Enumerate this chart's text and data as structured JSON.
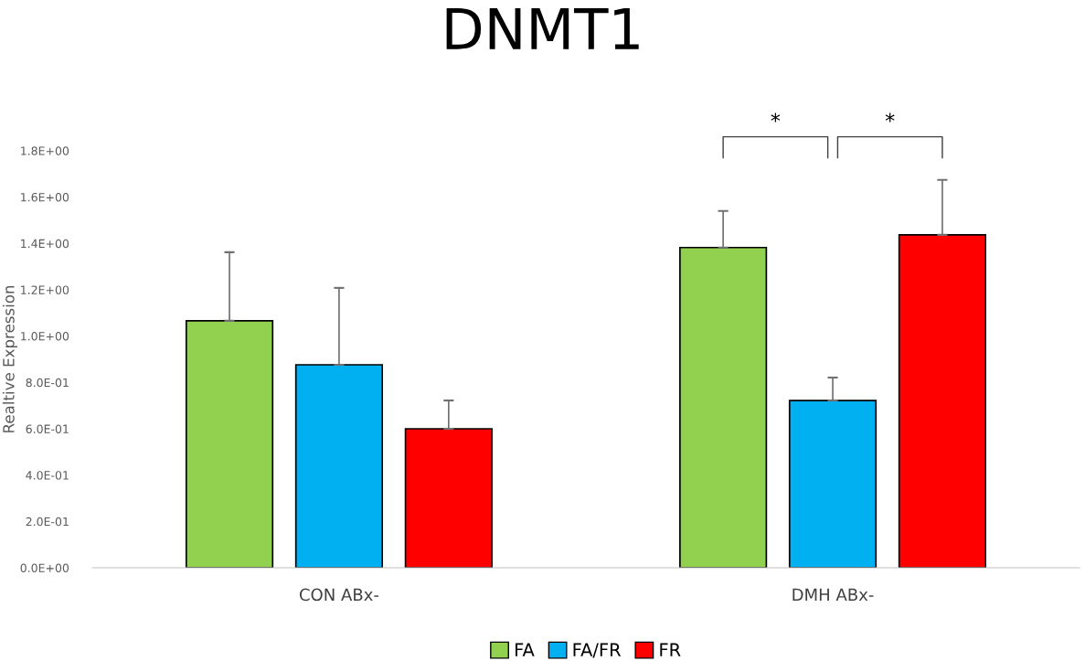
{
  "chart_data": {
    "type": "bar",
    "title": "DNMT1",
    "ylabel": "Realtive Expression",
    "categories": [
      "CON ABx-",
      "DMH ABx-"
    ],
    "series": [
      {
        "name": "FA",
        "color": "#92d050",
        "values": [
          1.066,
          1.382
        ],
        "errors": [
          [
            1.066,
            1.362
          ],
          [
            1.382,
            1.54
          ]
        ]
      },
      {
        "name": "FA/FR",
        "color": "#00b0f0",
        "values": [
          0.876,
          0.722
        ],
        "errors": [
          [
            0.876,
            1.208
          ],
          [
            0.722,
            0.821
          ]
        ]
      },
      {
        "name": "FR",
        "color": "#ff0000",
        "values": [
          0.6,
          1.437
        ],
        "errors": [
          [
            0.6,
            0.722
          ],
          [
            1.437,
            1.674
          ]
        ]
      }
    ],
    "ylim": [
      0,
      1.8
    ],
    "yticks": [
      {
        "value": 0,
        "label": "0.0E+00"
      },
      {
        "value": 0.2,
        "label": "2.0E-01"
      },
      {
        "value": 0.4,
        "label": "4.0E-01"
      },
      {
        "value": 0.6,
        "label": "6.0E-01"
      },
      {
        "value": 0.8,
        "label": "8.0E-01"
      },
      {
        "value": 1.0,
        "label": "1.0E+00"
      },
      {
        "value": 1.2,
        "label": "1.2E+00"
      },
      {
        "value": 1.4,
        "label": "1.4E+00"
      },
      {
        "value": 1.6,
        "label": "1.6E+00"
      },
      {
        "value": 1.8,
        "label": "1.8E+00"
      }
    ],
    "annotations": [
      "*",
      "*"
    ],
    "grid": false,
    "legend": "bottom"
  }
}
